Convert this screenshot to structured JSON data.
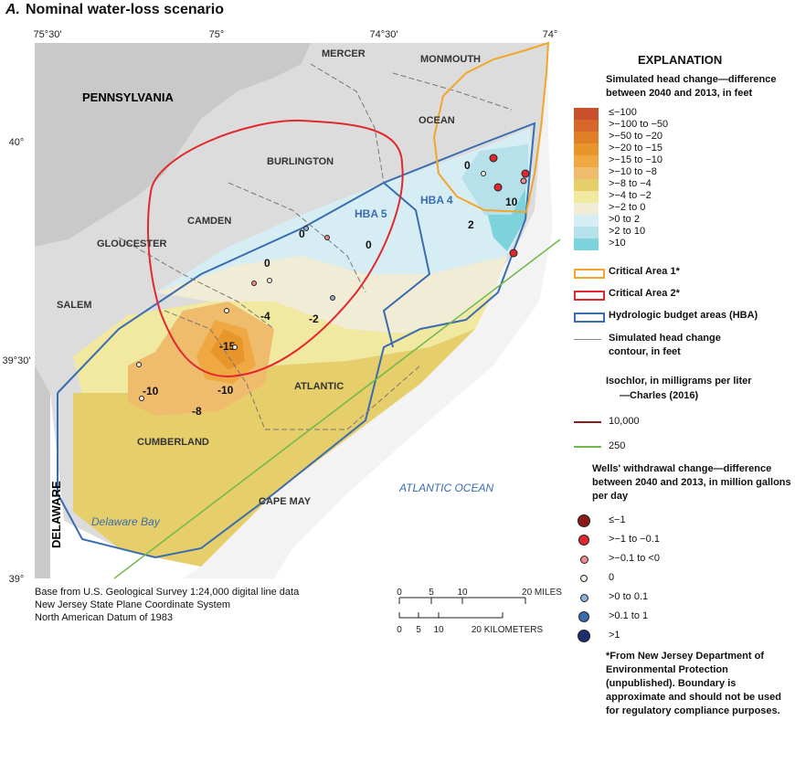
{
  "title": {
    "letter": "A.",
    "text": "Nominal water-loss scenario"
  },
  "lon_ticks": [
    "75°30'",
    "75°",
    "74°30'",
    "74°"
  ],
  "lat_ticks": [
    "40°",
    "39°30'",
    "39°"
  ],
  "states": [
    "PENNSYLVANIA",
    "DELAWARE"
  ],
  "counties": [
    "MERCER",
    "MONMOUTH",
    "OCEAN",
    "BURLINGTON",
    "CAMDEN",
    "GLOUCESTER",
    "SALEM",
    "ATLANTIC",
    "CUMBERLAND",
    "CAPE MAY"
  ],
  "water_labels": [
    "ATLANTIC OCEAN",
    "Delaware Bay"
  ],
  "hba_labels": [
    "HBA 5",
    "HBA 4"
  ],
  "contour_labels": [
    "0",
    "0",
    "0",
    "0",
    "2",
    "10",
    "-2",
    "-4",
    "-15",
    "-10",
    "-10",
    "-8"
  ],
  "credits": [
    "Base from U.S. Geological Survey 1:24,000 digital line data",
    "New Jersey State Plane Coordinate System",
    "North American Datum of 1983"
  ],
  "scale": {
    "miles": [
      "0",
      "5",
      "10",
      "20 MILES"
    ],
    "km": [
      "0",
      "5",
      "10",
      "20 KILOMETERS"
    ]
  },
  "legend": {
    "title": "EXPLANATION",
    "head_change_title": "Simulated head change—difference between 2040 and 2013, in feet",
    "classes": [
      {
        "label": "≤−100",
        "color": "#c8502a"
      },
      {
        "label": ">−100 to −50",
        "color": "#d5672b"
      },
      {
        "label": ">−50 to −20",
        "color": "#df8028"
      },
      {
        "label": ">−20 to −15",
        "color": "#e8952c"
      },
      {
        "label": ">−15 to −10",
        "color": "#efa842"
      },
      {
        "label": ">−10 to −8",
        "color": "#efbc6e"
      },
      {
        "label": ">−8 to −4",
        "color": "#e6cf6a"
      },
      {
        "label": ">−4 to −2",
        "color": "#f2e9a0"
      },
      {
        "label": ">−2 to 0",
        "color": "#f1ecd6"
      },
      {
        "label": ">0 to 2",
        "color": "#d7edf4"
      },
      {
        "label": ">2 to 10",
        "color": "#b6e1ea"
      },
      {
        "label": ">10",
        "color": "#7dd3dc"
      }
    ],
    "lines": [
      {
        "label": "Critical Area 1*",
        "color": "#f2a52a"
      },
      {
        "label": "Critical Area 2*",
        "color": "#e0282e"
      },
      {
        "label": "Hydrologic budget areas (HBA)",
        "color": "#3a6cb0"
      },
      {
        "label": "Simulated head change contour, in feet",
        "color": "#888888"
      }
    ],
    "isochlor_title": "Isochlor, in milligrams per liter",
    "isochlor_source": "—Charles (2016)",
    "isochlors": [
      {
        "label": "10,000",
        "color": "#8b1a1a"
      },
      {
        "label": "250",
        "color": "#6fb84a"
      }
    ],
    "wells_title": "Wells' withdrawal change—difference between 2040 and 2013, in million gallons per day",
    "wells": [
      {
        "label": "≤−1",
        "color": "#8b1a1a"
      },
      {
        "label": ">−1 to −0.1",
        "color": "#e0282e"
      },
      {
        "label": ">−0.1 to <0",
        "color": "#f08a8a"
      },
      {
        "label": "0",
        "color": "#f4efe0"
      },
      {
        "label": ">0 to 0.1",
        "color": "#8ab0d8"
      },
      {
        "label": ">0.1 to 1",
        "color": "#3a6cb0"
      },
      {
        "label": ">1",
        "color": "#1f2f6b"
      }
    ],
    "footnote": "*From New Jersey Department of Environmental Protection (unpublished). Boundary is approximate and should not be used for regulatory compliance purposes."
  }
}
